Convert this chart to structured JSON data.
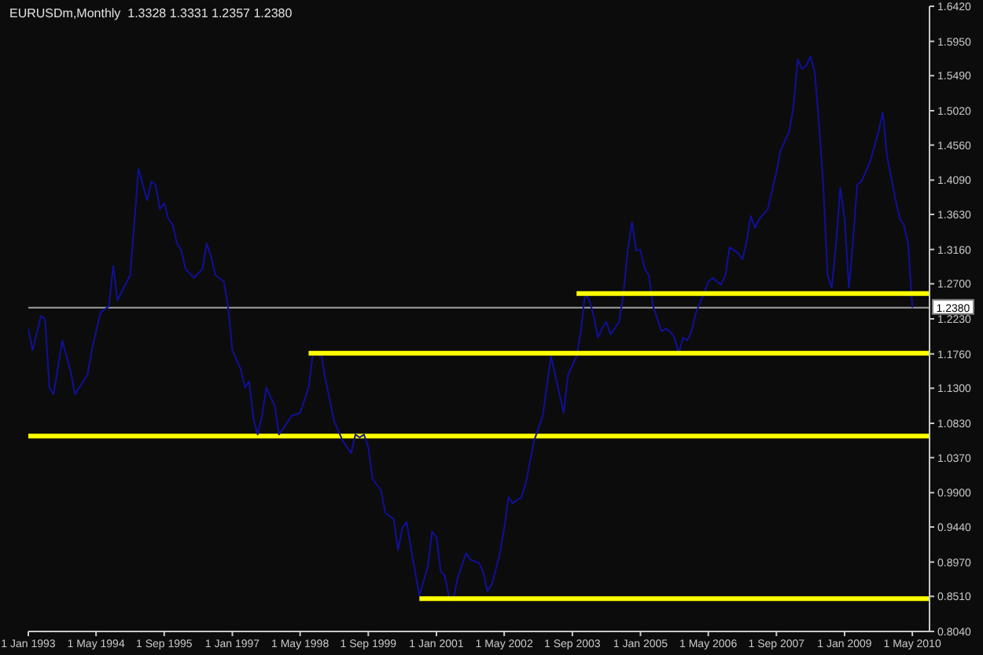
{
  "chart_data": {
    "type": "line",
    "title": "EURUSDm,Monthly  1.3328 1.3331 1.2357 1.2380",
    "marker": "none",
    "legend": false,
    "grid": false,
    "xlim": [
      "1993-01",
      "2010-09"
    ],
    "xticks": [
      {
        "value": "1993-01",
        "label": "1 Jan 1993"
      },
      {
        "value": "1994-05",
        "label": "1 May 1994"
      },
      {
        "value": "1995-09",
        "label": "1 Sep 1995"
      },
      {
        "value": "1997-01",
        "label": "1 Jan 1997"
      },
      {
        "value": "1998-05",
        "label": "1 May 1998"
      },
      {
        "value": "1999-09",
        "label": "1 Sep 1999"
      },
      {
        "value": "2001-01",
        "label": "1 Jan 2001"
      },
      {
        "value": "2002-05",
        "label": "1 May 2002"
      },
      {
        "value": "2003-09",
        "label": "1 Sep 2003"
      },
      {
        "value": "2005-01",
        "label": "1 Jan 2005"
      },
      {
        "value": "2006-05",
        "label": "1 May 2006"
      },
      {
        "value": "2007-09",
        "label": "1 Sep 2007"
      },
      {
        "value": "2009-01",
        "label": "1 Jan 2009"
      },
      {
        "value": "2010-05",
        "label": "1 May 2010"
      }
    ],
    "ylim": [
      0.804,
      1.642
    ],
    "yticks": [
      {
        "value": 0.804,
        "label": "0.8040"
      },
      {
        "value": 0.851,
        "label": "0.8510"
      },
      {
        "value": 0.897,
        "label": "0.8970"
      },
      {
        "value": 0.944,
        "label": "0.9440"
      },
      {
        "value": 0.99,
        "label": "0.9900"
      },
      {
        "value": 1.037,
        "label": "1.0370"
      },
      {
        "value": 1.083,
        "label": "1.0830"
      },
      {
        "value": 1.13,
        "label": "1.1300"
      },
      {
        "value": 1.176,
        "label": "1.1760"
      },
      {
        "value": 1.223,
        "label": "1.2230"
      },
      {
        "value": 1.27,
        "label": "1.2700"
      },
      {
        "value": 1.316,
        "label": "1.3160"
      },
      {
        "value": 1.363,
        "label": "1.3630"
      },
      {
        "value": 1.409,
        "label": "1.4090"
      },
      {
        "value": 1.456,
        "label": "1.4560"
      },
      {
        "value": 1.502,
        "label": "1.5020"
      },
      {
        "value": 1.549,
        "label": "1.5490"
      },
      {
        "value": 1.595,
        "label": "1.5950"
      },
      {
        "value": 1.642,
        "label": "1.6420"
      }
    ],
    "ref_lines": [
      {
        "axis": "y",
        "value": 1.238,
        "label": "1.2380",
        "color": "#a0a0a0"
      },
      {
        "axis": "y",
        "value": 1.066,
        "label": null,
        "color": "#ffff00"
      }
    ],
    "series": [
      {
        "color": "#10109a",
        "x": [
          "1993-01",
          "1993-02",
          "1993-04",
          "1993-05",
          "1993-06",
          "1993-07",
          "1993-09",
          "1993-11",
          "1993-12",
          "1994-03",
          "1994-04",
          "1994-05",
          "1994-06",
          "1994-08",
          "1994-09",
          "1994-10",
          "1995-01",
          "1995-02",
          "1995-03",
          "1995-04",
          "1995-05",
          "1995-06",
          "1995-07",
          "1995-08",
          "1995-09",
          "1995-10",
          "1995-11",
          "1995-12",
          "1996-01",
          "1996-02",
          "1996-04",
          "1996-06",
          "1996-07",
          "1996-08",
          "1996-09",
          "1996-11",
          "1996-12",
          "1997-01",
          "1997-03",
          "1997-04",
          "1997-05",
          "1997-06",
          "1997-07",
          "1997-08",
          "1997-09",
          "1997-11",
          "1997-12",
          "1998-02",
          "1998-03",
          "1998-05",
          "1998-07",
          "1998-08",
          "1998-10",
          "1998-11",
          "1999-01",
          "1999-03",
          "1999-05",
          "1999-06",
          "1999-07",
          "1999-08",
          "1999-09",
          "1999-10",
          "1999-12",
          "2000-01",
          "2000-03",
          "2000-04",
          "2000-05",
          "2000-06",
          "2000-07",
          "2000-08",
          "2000-09",
          "2000-11",
          "2000-12",
          "2001-01",
          "2001-02",
          "2001-03",
          "2001-04",
          "2001-05",
          "2001-06",
          "2001-08",
          "2001-09",
          "2001-11",
          "2001-12",
          "2002-01",
          "2002-02",
          "2002-04",
          "2002-05",
          "2002-06",
          "2002-07",
          "2002-09",
          "2002-10",
          "2002-12",
          "2003-01",
          "2003-02",
          "2003-04",
          "2003-05",
          "2003-06",
          "2003-07",
          "2003-08",
          "2003-10",
          "2003-11",
          "2003-12",
          "2004-01",
          "2004-02",
          "2004-03",
          "2004-04",
          "2004-05",
          "2004-06",
          "2004-08",
          "2004-09",
          "2004-10",
          "2004-11",
          "2004-12",
          "2005-01",
          "2005-02",
          "2005-03",
          "2005-04",
          "2005-06",
          "2005-07",
          "2005-08",
          "2005-09",
          "2005-10",
          "2005-11",
          "2005-12",
          "2006-01",
          "2006-02",
          "2006-04",
          "2006-05",
          "2006-06",
          "2006-07",
          "2006-08",
          "2006-09",
          "2006-10",
          "2006-12",
          "2007-01",
          "2007-02",
          "2007-03",
          "2007-04",
          "2007-05",
          "2007-07",
          "2007-08",
          "2007-09",
          "2007-10",
          "2007-11",
          "2007-12",
          "2008-01",
          "2008-02",
          "2008-03",
          "2008-04",
          "2008-05",
          "2008-06",
          "2008-07",
          "2008-08",
          "2008-09",
          "2008-10",
          "2008-11",
          "2008-12",
          "2009-01",
          "2009-02",
          "2009-03",
          "2009-04",
          "2009-05",
          "2009-06",
          "2009-07",
          "2009-08",
          "2009-09",
          "2009-10",
          "2009-11",
          "2010-01",
          "2010-02",
          "2010-03",
          "2010-04",
          "2010-05"
        ],
        "values": [
          1.21,
          1.181,
          1.227,
          1.223,
          1.131,
          1.122,
          1.194,
          1.152,
          1.122,
          1.148,
          1.181,
          1.206,
          1.231,
          1.24,
          1.294,
          1.248,
          1.282,
          1.357,
          1.424,
          1.403,
          1.382,
          1.407,
          1.403,
          1.37,
          1.378,
          1.357,
          1.349,
          1.324,
          1.315,
          1.29,
          1.278,
          1.29,
          1.324,
          1.307,
          1.282,
          1.273,
          1.24,
          1.181,
          1.156,
          1.131,
          1.139,
          1.089,
          1.068,
          1.093,
          1.131,
          1.106,
          1.068,
          1.085,
          1.093,
          1.097,
          1.131,
          1.177,
          1.173,
          1.139,
          1.085,
          1.06,
          1.043,
          1.068,
          1.064,
          1.068,
          1.051,
          1.009,
          0.993,
          0.963,
          0.955,
          0.913,
          0.942,
          0.951,
          0.917,
          0.884,
          0.852,
          0.892,
          0.938,
          0.93,
          0.884,
          0.879,
          0.85,
          0.846,
          0.875,
          0.909,
          0.9,
          0.896,
          0.884,
          0.858,
          0.867,
          0.909,
          0.942,
          0.984,
          0.976,
          0.984,
          1.001,
          1.06,
          1.076,
          1.093,
          1.173,
          1.148,
          1.122,
          1.097,
          1.148,
          1.173,
          1.206,
          1.257,
          1.248,
          1.227,
          1.198,
          1.21,
          1.219,
          1.202,
          1.219,
          1.257,
          1.315,
          1.353,
          1.315,
          1.315,
          1.29,
          1.282,
          1.24,
          1.206,
          1.21,
          1.206,
          1.198,
          1.177,
          1.198,
          1.194,
          1.206,
          1.231,
          1.257,
          1.273,
          1.278,
          1.273,
          1.269,
          1.282,
          1.319,
          1.311,
          1.303,
          1.328,
          1.361,
          1.345,
          1.357,
          1.37,
          1.395,
          1.42,
          1.449,
          1.462,
          1.474,
          1.508,
          1.571,
          1.558,
          1.562,
          1.575,
          1.554,
          1.487,
          1.403,
          1.282,
          1.265,
          1.324,
          1.399,
          1.357,
          1.265,
          1.324,
          1.403,
          1.407,
          1.42,
          1.433,
          1.453,
          1.474,
          1.5,
          1.441,
          1.382,
          1.357,
          1.349,
          1.324,
          1.238
        ]
      },
      {
        "color": "#ffff00",
        "x": [
          "2003-10",
          "2010-09"
        ],
        "values": [
          1.257,
          1.257
        ]
      },
      {
        "color": "#ffff00",
        "x": [
          "1998-07",
          "2010-09"
        ],
        "values": [
          1.177,
          1.177
        ]
      },
      {
        "color": "#ffff00",
        "x": [
          "2000-09",
          "2010-09"
        ],
        "values": [
          0.848,
          0.848
        ]
      }
    ]
  }
}
